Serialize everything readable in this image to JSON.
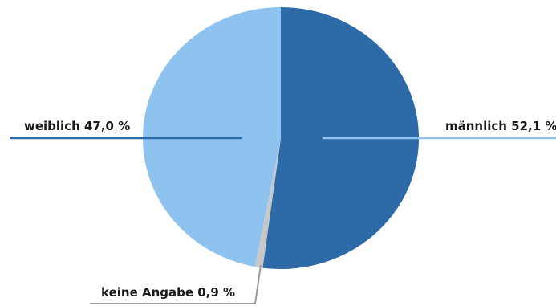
{
  "chart_data": {
    "type": "pie",
    "title": "",
    "slices": [
      {
        "label": "männlich 52,1 %",
        "value": 52.1,
        "color": "#2c6aa8"
      },
      {
        "label": "keine Angabe 0,9 %",
        "value": 0.9,
        "color": "#c8c8c8"
      },
      {
        "label": "weiblich 47,0 %",
        "value": 47.0,
        "color": "#8fc3ef"
      }
    ],
    "leader_line_colors": {
      "männlich": "#8fc3ef",
      "weiblich": "#2c6aa8",
      "keine Angabe": "#9a9a9a"
    }
  }
}
